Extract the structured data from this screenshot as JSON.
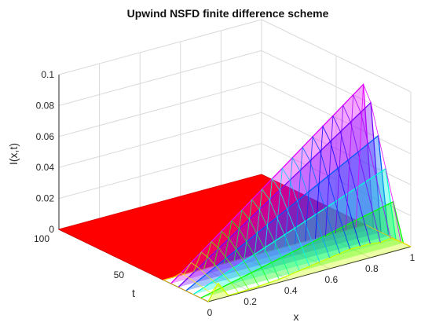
{
  "chart_data": {
    "type": "surface",
    "title": "Upwind NSFD finite difference scheme",
    "xlabel": "x",
    "ylabel": "t",
    "zlabel": "I(x,t)",
    "xlim": [
      0,
      1
    ],
    "ylim": [
      0,
      100
    ],
    "zlim": [
      0,
      0.1
    ],
    "x_ticks": [
      "0",
      "0.2",
      "0.4",
      "0.6",
      "0.8",
      "1"
    ],
    "y_ticks": [
      "50",
      "100"
    ],
    "z_ticks": [
      "0",
      "0.02",
      "0.04",
      "0.06",
      "0.08",
      "0.1"
    ],
    "grid": true,
    "colormap": "hsv",
    "series": [
      {
        "t": 0,
        "x": [
          0,
          0.05,
          0.1,
          0.15,
          0.2,
          0.25,
          0.3,
          0.35,
          0.4,
          0.45,
          0.5,
          0.55,
          0.6,
          0.65,
          0.7,
          0.75,
          0.8,
          0.85,
          0.9,
          0.95,
          1
        ],
        "values": [
          0,
          0.01,
          0.0005,
          0.0005,
          0.0008,
          0.001,
          0.0015,
          0.002,
          0.003,
          0.004,
          0.005,
          0.006,
          0.007,
          0.008,
          0.009,
          0.009,
          0.009,
          0.008,
          0.009,
          0.005,
          0
        ]
      },
      {
        "t": 5,
        "x": [
          0,
          0.05,
          0.1,
          0.15,
          0.2,
          0.25,
          0.3,
          0.35,
          0.4,
          0.45,
          0.5,
          0.55,
          0.6,
          0.65,
          0.7,
          0.75,
          0.8,
          0.85,
          0.9,
          0.95,
          1
        ],
        "values": [
          0,
          0.0015,
          0.003,
          0.0045,
          0.006,
          0.0075,
          0.009,
          0.0105,
          0.012,
          0.0135,
          0.015,
          0.0165,
          0.018,
          0.0195,
          0.021,
          0.0225,
          0.024,
          0.0255,
          0.027,
          0.0285,
          0
        ]
      },
      {
        "t": 10,
        "x": [
          0,
          0.05,
          0.1,
          0.15,
          0.2,
          0.25,
          0.3,
          0.35,
          0.4,
          0.45,
          0.5,
          0.55,
          0.6,
          0.65,
          0.7,
          0.75,
          0.8,
          0.85,
          0.9,
          0.95,
          1
        ],
        "values": [
          0,
          0.0025,
          0.005,
          0.0075,
          0.01,
          0.0125,
          0.015,
          0.0175,
          0.02,
          0.0225,
          0.025,
          0.0275,
          0.03,
          0.0325,
          0.035,
          0.0375,
          0.04,
          0.0425,
          0.045,
          0.0475,
          0
        ]
      },
      {
        "t": 15,
        "x": [
          0,
          0.05,
          0.1,
          0.15,
          0.2,
          0.25,
          0.3,
          0.35,
          0.4,
          0.45,
          0.5,
          0.55,
          0.6,
          0.65,
          0.7,
          0.75,
          0.8,
          0.85,
          0.9,
          0.95,
          1
        ],
        "values": [
          0,
          0.0035,
          0.007,
          0.0105,
          0.014,
          0.0175,
          0.021,
          0.0245,
          0.028,
          0.0315,
          0.035,
          0.0385,
          0.042,
          0.0455,
          0.049,
          0.0525,
          0.056,
          0.0595,
          0.063,
          0.0665,
          0
        ]
      },
      {
        "t": 20,
        "x": [
          0,
          0.05,
          0.1,
          0.15,
          0.2,
          0.25,
          0.3,
          0.35,
          0.4,
          0.45,
          0.5,
          0.55,
          0.6,
          0.65,
          0.7,
          0.75,
          0.8,
          0.85,
          0.9,
          0.95,
          1
        ],
        "values": [
          0,
          0.0045,
          0.009,
          0.0135,
          0.018,
          0.0225,
          0.027,
          0.0315,
          0.036,
          0.0405,
          0.045,
          0.0495,
          0.054,
          0.0585,
          0.063,
          0.0675,
          0.072,
          0.0765,
          0.081,
          0.0855,
          0
        ]
      },
      {
        "t": 25,
        "x": [
          0,
          0.05,
          0.1,
          0.15,
          0.2,
          0.25,
          0.3,
          0.35,
          0.4,
          0.45,
          0.5,
          0.55,
          0.6,
          0.65,
          0.7,
          0.75,
          0.8,
          0.85,
          0.9,
          0.95,
          1
        ],
        "values": [
          0,
          0.005,
          0.01,
          0.015,
          0.02,
          0.025,
          0.03,
          0.035,
          0.04,
          0.045,
          0.05,
          0.055,
          0.06,
          0.065,
          0.07,
          0.075,
          0.08,
          0.085,
          0.09,
          0.095,
          0
        ]
      },
      {
        "t": 30,
        "x": [
          0,
          0.05,
          0.1,
          0.15,
          0.2,
          0.25,
          0.3,
          0.35,
          0.4,
          0.45,
          0.5,
          0.55,
          0.6,
          0.65,
          0.7,
          0.75,
          0.8,
          0.85,
          0.9,
          0.95,
          1
        ],
        "values": [
          0,
          0,
          0,
          0,
          0,
          0,
          0,
          0,
          0,
          0,
          0,
          0,
          0,
          0,
          0,
          0,
          0,
          0,
          0,
          0,
          0
        ]
      },
      {
        "t": 100,
        "x": [
          0,
          1
        ],
        "values": [
          0,
          0
        ]
      }
    ]
  }
}
